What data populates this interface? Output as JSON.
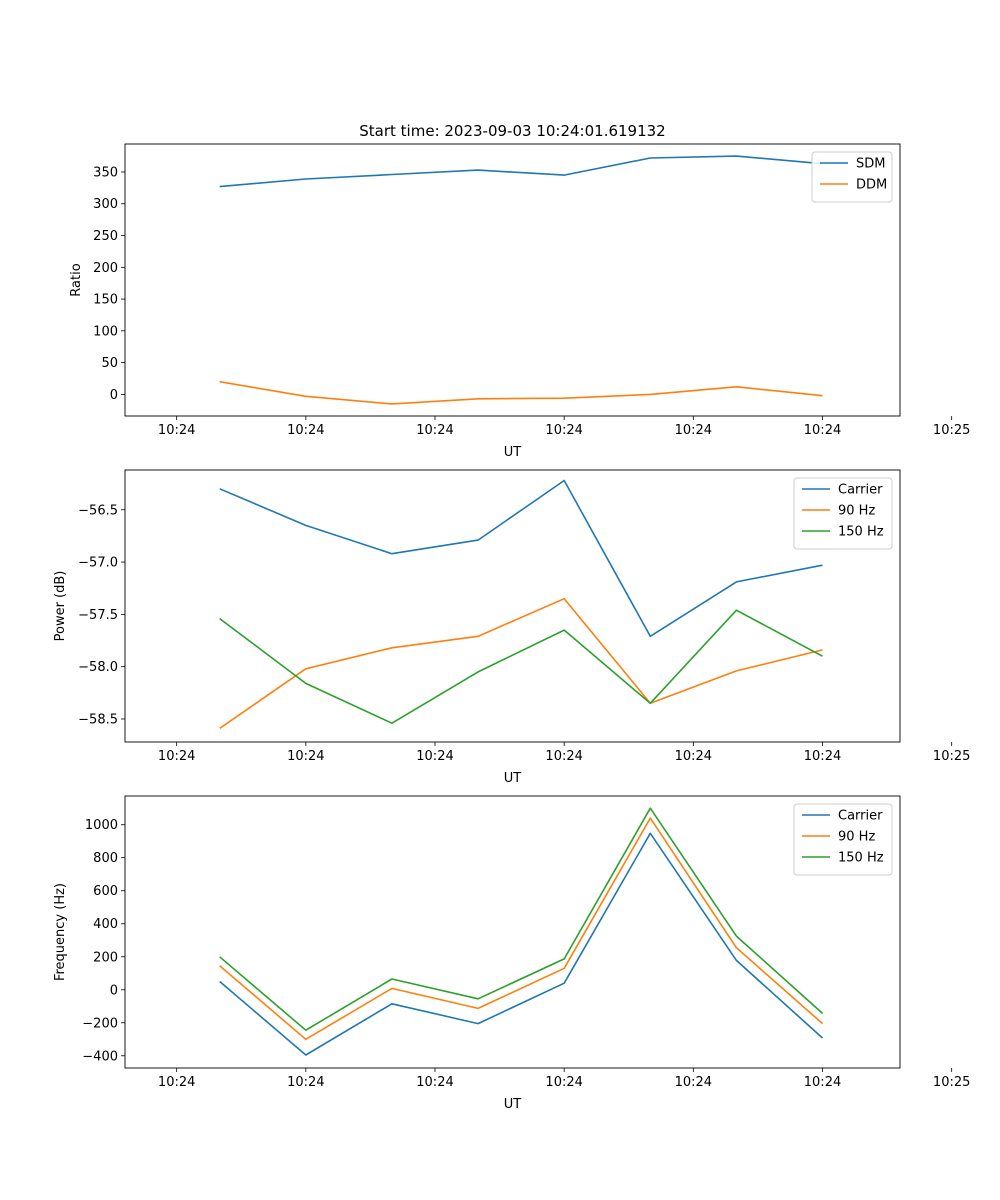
{
  "title": "Start time: 2023-09-03 10:24:01.619132",
  "chart_data": [
    {
      "type": "line",
      "title": "Start time: 2023-09-03 10:24:01.619132",
      "xlabel": "UT",
      "ylabel": "Ratio",
      "x": [
        1.5,
        2.5,
        3.5,
        4.5,
        5.5,
        6.5,
        7.5,
        8.5
      ],
      "xlim": [
        0.4,
        9.4
      ],
      "xticks": [
        1,
        2.5,
        4,
        5.5,
        7,
        8.5,
        10
      ],
      "xtick_labels": [
        "10:24",
        "10:24",
        "10:24",
        "10:24",
        "10:24",
        "10:24",
        "10:25"
      ],
      "ylim": [
        -34,
        394
      ],
      "yticks": [
        0,
        50,
        100,
        150,
        200,
        250,
        300,
        350
      ],
      "ytick_labels": [
        "0",
        "50",
        "100",
        "150",
        "200",
        "250",
        "300",
        "350"
      ],
      "legend_position": "top-right",
      "series": [
        {
          "name": "SDM",
          "color": "#1f77b4",
          "values": [
            327,
            339,
            346,
            353,
            345,
            372,
            375,
            363
          ]
        },
        {
          "name": "DDM",
          "color": "#ff7f0e",
          "values": [
            20,
            -3,
            -15,
            -7,
            -6,
            0,
            12,
            -2
          ]
        }
      ]
    },
    {
      "type": "line",
      "title": "",
      "xlabel": "UT",
      "ylabel": "Power (dB)",
      "x": [
        1.5,
        2.5,
        3.5,
        4.5,
        5.5,
        6.5,
        7.5,
        8.5
      ],
      "xlim": [
        0.4,
        9.4
      ],
      "xticks": [
        1,
        2.5,
        4,
        5.5,
        7,
        8.5,
        10
      ],
      "xtick_labels": [
        "10:24",
        "10:24",
        "10:24",
        "10:24",
        "10:24",
        "10:24",
        "10:25"
      ],
      "ylim": [
        -58.72,
        -56.12
      ],
      "yticks": [
        -56.5,
        -57.0,
        -57.5,
        -58.0,
        -58.5
      ],
      "ytick_labels": [
        "−56.5",
        "−57.0",
        "−57.5",
        "−58.0",
        "−58.5"
      ],
      "legend_position": "top-right",
      "series": [
        {
          "name": "Carrier",
          "color": "#1f77b4",
          "values": [
            -56.3,
            -56.65,
            -56.92,
            -56.79,
            -56.22,
            -57.71,
            -57.19,
            -57.03
          ]
        },
        {
          "name": "90 Hz",
          "color": "#ff7f0e",
          "values": [
            -58.59,
            -58.02,
            -57.82,
            -57.71,
            -57.35,
            -58.35,
            -58.04,
            -57.84
          ]
        },
        {
          "name": "150 Hz",
          "color": "#2ca02c",
          "values": [
            -57.54,
            -58.16,
            -58.54,
            -58.05,
            -57.65,
            -58.35,
            -57.46,
            -57.9
          ]
        }
      ]
    },
    {
      "type": "line",
      "title": "",
      "xlabel": "UT",
      "ylabel": "Frequency (Hz)",
      "x": [
        1.5,
        2.5,
        3.5,
        4.5,
        5.5,
        6.5,
        7.5,
        8.5
      ],
      "xlim": [
        0.4,
        9.4
      ],
      "xticks": [
        1,
        2.5,
        4,
        5.5,
        7,
        8.5,
        10
      ],
      "xtick_labels": [
        "10:24",
        "10:24",
        "10:24",
        "10:24",
        "10:24",
        "10:24",
        "10:25"
      ],
      "ylim": [
        -474,
        1174
      ],
      "yticks": [
        -400,
        -200,
        0,
        200,
        400,
        600,
        800,
        1000
      ],
      "ytick_labels": [
        "−400",
        "−200",
        "0",
        "200",
        "400",
        "600",
        "800",
        "1000"
      ],
      "legend_position": "top-right",
      "series": [
        {
          "name": "Carrier",
          "color": "#1f77b4",
          "values": [
            50,
            -395,
            -85,
            -205,
            40,
            948,
            178,
            -292
          ]
        },
        {
          "name": "90 Hz",
          "color": "#ff7f0e",
          "values": [
            145,
            -300,
            8,
            -113,
            130,
            1040,
            255,
            -205
          ]
        },
        {
          "name": "150 Hz",
          "color": "#2ca02c",
          "values": [
            200,
            -245,
            65,
            -55,
            187,
            1100,
            325,
            -143
          ]
        }
      ]
    }
  ]
}
